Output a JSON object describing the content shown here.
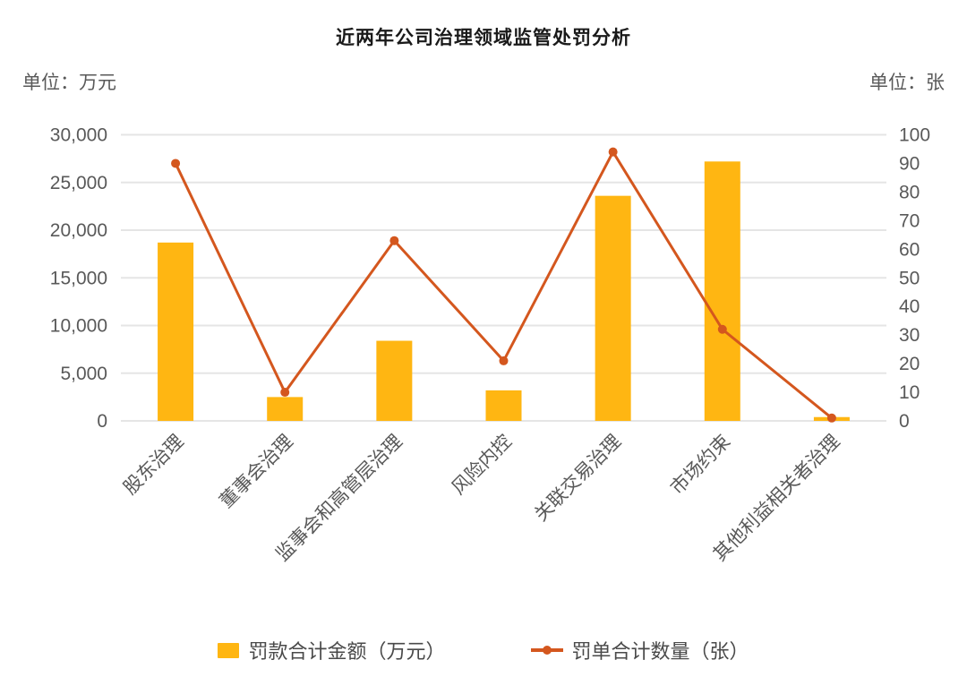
{
  "title": "近两年公司治理领域监管处罚分析",
  "axis_units": {
    "left": "单位：万元",
    "right": "单位：张"
  },
  "chart_data": {
    "type": "bar",
    "subtype": "combo-bar-line-dual-axis",
    "title": "近两年公司治理领域监管处罚分析",
    "categories": [
      "股东治理",
      "董事会治理",
      "监事会和高管层治理",
      "风险内控",
      "关联交易治理",
      "市场约束",
      "其他利益相关者治理"
    ],
    "series": [
      {
        "name": "罚款合计金额（万元）",
        "type": "bar",
        "axis": "left",
        "color": "#FFB612",
        "values": [
          18700,
          2500,
          8400,
          3200,
          23600,
          27200,
          400
        ]
      },
      {
        "name": "罚单合计数量（张）",
        "type": "line",
        "axis": "right",
        "color": "#D4571E",
        "values": [
          90,
          10,
          63,
          21,
          94,
          32,
          1
        ]
      }
    ],
    "left_axis": {
      "unit": "单位：万元",
      "min": 0,
      "max": 30000,
      "step": 5000,
      "ticks": [
        "0",
        "5,000",
        "10,000",
        "15,000",
        "20,000",
        "25,000",
        "30,000"
      ]
    },
    "right_axis": {
      "unit": "单位：张",
      "min": 0,
      "max": 100,
      "step": 10,
      "ticks": [
        "0",
        "10",
        "20",
        "30",
        "40",
        "50",
        "60",
        "70",
        "80",
        "90",
        "100"
      ]
    },
    "grid": true,
    "gridline_color": "#E5E5E5",
    "axis_text_color": "#595959",
    "legend_position": "bottom",
    "xlabel": "",
    "ylabel": ""
  },
  "legend": {
    "items": [
      {
        "label": "罚款合计金额（万元）",
        "swatch": "bar-square"
      },
      {
        "label": "罚单合计数量（张）",
        "swatch": "line-dot"
      }
    ]
  }
}
